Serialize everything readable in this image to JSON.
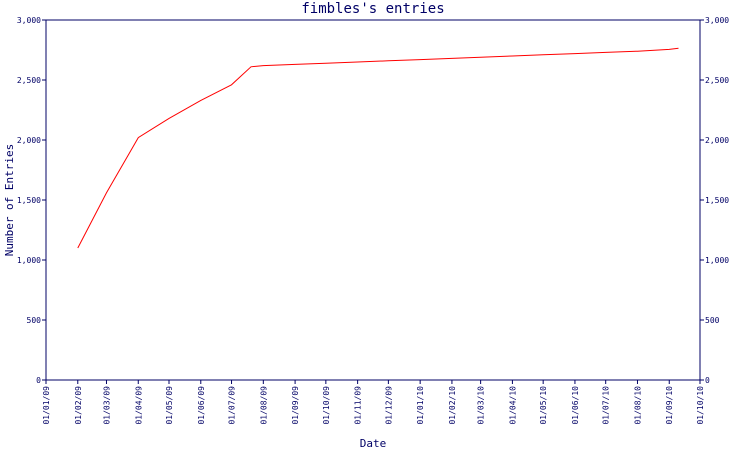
{
  "chart_data": {
    "type": "line",
    "title": "fimbles's entries",
    "xlabel": "Date",
    "ylabel": "Number of Entries",
    "ylim": [
      0,
      3000
    ],
    "y_ticks": [
      0,
      500,
      1000,
      1500,
      2000,
      2500,
      3000
    ],
    "y_tick_labels": [
      "0",
      "500",
      "1,000",
      "1,500",
      "2,000",
      "2,500",
      "3,000"
    ],
    "x_ticks": [
      "2009-01-01",
      "2009-02-01",
      "2009-03-01",
      "2009-04-01",
      "2009-05-01",
      "2009-06-01",
      "2009-07-01",
      "2009-08-01",
      "2009-09-01",
      "2009-10-01",
      "2009-11-01",
      "2009-12-01",
      "2010-01-01",
      "2010-02-01",
      "2010-03-01",
      "2010-04-01",
      "2010-05-01",
      "2010-06-01",
      "2010-07-01",
      "2010-08-01",
      "2010-09-01",
      "2010-10-01"
    ],
    "x_tick_labels": [
      "01/01/09",
      "01/02/09",
      "01/03/09",
      "01/04/09",
      "01/05/09",
      "01/06/09",
      "01/07/09",
      "01/08/09",
      "01/09/09",
      "01/10/09",
      "01/11/09",
      "01/12/09",
      "01/01/10",
      "01/02/10",
      "01/03/10",
      "01/04/10",
      "01/05/10",
      "01/06/10",
      "01/07/10",
      "01/08/10",
      "01/09/10",
      "01/10/10"
    ],
    "xlim": [
      "2009-01-01",
      "2010-10-01"
    ],
    "series": [
      {
        "color": "#ff0000",
        "x": [
          "2009-02-01",
          "2009-03-01",
          "2009-04-01",
          "2009-05-01",
          "2009-06-01",
          "2009-07-01",
          "2009-07-20",
          "2009-08-01",
          "2009-09-01",
          "2009-10-01",
          "2009-11-01",
          "2009-12-01",
          "2010-01-01",
          "2010-02-01",
          "2010-03-01",
          "2010-04-01",
          "2010-05-01",
          "2010-06-01",
          "2010-07-01",
          "2010-08-01",
          "2010-09-01",
          "2010-09-10"
        ],
        "y": [
          1100,
          1560,
          2020,
          2180,
          2330,
          2460,
          2610,
          2620,
          2630,
          2640,
          2650,
          2660,
          2670,
          2680,
          2690,
          2700,
          2710,
          2720,
          2730,
          2740,
          2755,
          2765
        ]
      }
    ],
    "colors": {
      "axis": "#000066",
      "text": "#000066",
      "line": "#ff0000"
    },
    "grid": false,
    "right_axis": true
  }
}
